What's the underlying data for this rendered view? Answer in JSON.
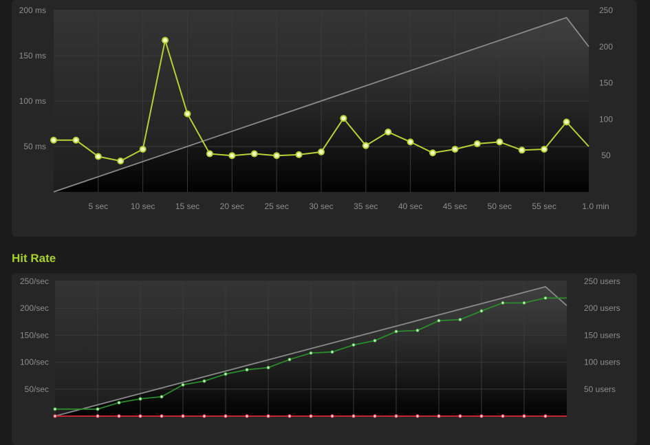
{
  "colors": {
    "background": "#1b1b1b",
    "panel": "#262626",
    "response_line": "#b5d334",
    "users_line": "#8a8a8a",
    "hits_line": "#2a8c2a",
    "errors_line": "#e0263a",
    "title": "#a8d12a"
  },
  "section_title": "Hit Rate",
  "chart_data": [
    {
      "type": "line",
      "title": "",
      "x_ticks": [
        "5 sec",
        "10 sec",
        "15 sec",
        "20 sec",
        "25 sec",
        "30 sec",
        "35 sec",
        "40 sec",
        "45 sec",
        "50 sec",
        "55 sec",
        "1.0 min"
      ],
      "y_left_ticks": [
        "200 ms",
        "150 ms",
        "100 ms",
        "50 ms"
      ],
      "y_right_ticks": [
        "250",
        "200",
        "150",
        "100",
        "50"
      ],
      "xlim": [
        0,
        60
      ],
      "ylim_left": [
        0,
        200
      ],
      "ylim_right": [
        0,
        250
      ],
      "grid": true,
      "series": [
        {
          "axis": "left",
          "markers": true,
          "x": [
            0,
            2.5,
            5,
            7.5,
            10,
            12.5,
            15,
            17.5,
            20,
            22.5,
            25,
            27.5,
            30,
            32.5,
            35,
            37.5,
            40,
            42.5,
            45,
            47.5,
            50,
            52.5,
            55,
            57.5,
            60
          ],
          "values": [
            57,
            57,
            39,
            34,
            47,
            167,
            86,
            42,
            40,
            42,
            40,
            41,
            44,
            81,
            51,
            66,
            55,
            43,
            47,
            53,
            55,
            46,
            47,
            77,
            50
          ]
        },
        {
          "axis": "right",
          "markers": false,
          "x": [
            0,
            57.5,
            60
          ],
          "values": [
            0,
            240,
            200
          ]
        }
      ]
    },
    {
      "type": "line",
      "title": "Hit Rate",
      "x_ticks": [],
      "y_left_ticks": [
        "250/sec",
        "200/sec",
        "150/sec",
        "100/sec",
        "50/sec"
      ],
      "y_right_ticks": [
        "250 users",
        "200 users",
        "150 users",
        "100 users",
        "50 users"
      ],
      "xlim": [
        0,
        60
      ],
      "ylim_left": [
        0,
        250
      ],
      "ylim_right": [
        0,
        250
      ],
      "grid": true,
      "series": [
        {
          "axis": "left",
          "markers": true,
          "x": [
            0,
            5,
            7.5,
            10,
            12.5,
            15,
            17.5,
            20,
            22.5,
            25,
            27.5,
            30,
            32.5,
            35,
            37.5,
            40,
            42.5,
            45,
            47.5,
            50,
            52.5,
            55,
            57.5,
            60
          ],
          "values": [
            13,
            13,
            25,
            32,
            36,
            58,
            65,
            78,
            86,
            90,
            105,
            117,
            119,
            132,
            140,
            157,
            159,
            177,
            179,
            195,
            210,
            210,
            219,
            219
          ]
        },
        {
          "axis": "right",
          "markers": false,
          "x": [
            0,
            57.5,
            60
          ],
          "values": [
            0,
            240,
            205
          ]
        },
        {
          "axis": "left",
          "markers": true,
          "x": [
            0,
            5,
            7.5,
            10,
            12.5,
            15,
            17.5,
            20,
            22.5,
            25,
            27.5,
            30,
            32.5,
            35,
            37.5,
            40,
            42.5,
            45,
            47.5,
            50,
            52.5,
            55,
            57.5,
            60
          ],
          "values": [
            0,
            0,
            0,
            0,
            0,
            0,
            0,
            0,
            0,
            0,
            0,
            0,
            0,
            0,
            0,
            0,
            0,
            0,
            0,
            0,
            0,
            0,
            0,
            0
          ]
        }
      ]
    }
  ]
}
